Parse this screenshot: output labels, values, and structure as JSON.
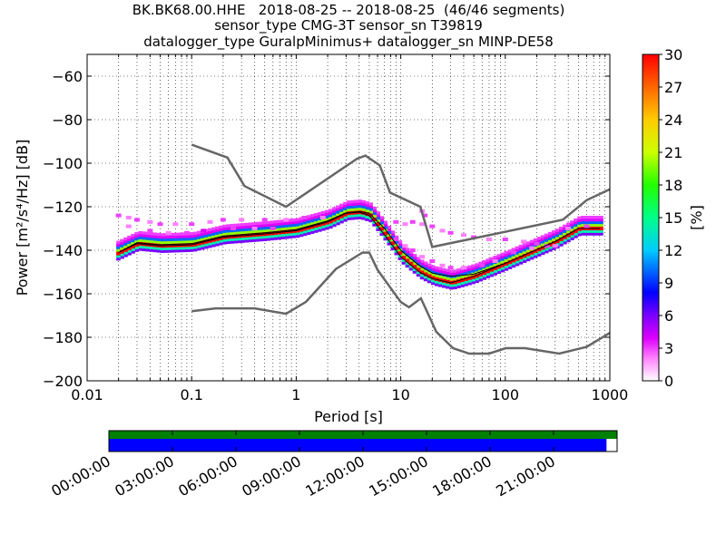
{
  "title_lines": [
    "BK.BK68.00.HHE   2018-08-25 -- 2018-08-25  (46/46 segments)",
    "sensor_type CMG-3T sensor_sn T39819",
    "datalogger_type GuralpMinimus+ datalogger_sn MINP-DE58"
  ],
  "chart_data": {
    "type": "heatmap",
    "xlabel": "Period [s]",
    "ylabel": "Power [m²/s⁴/Hz] [dB]",
    "xscale": "log",
    "xlim": [
      0.01,
      1000
    ],
    "ylim": [
      -200,
      -50
    ],
    "xticks": [
      {
        "value": 0.01,
        "label": "0.01"
      },
      {
        "value": 0.1,
        "label": "0.1"
      },
      {
        "value": 1,
        "label": "1"
      },
      {
        "value": 10,
        "label": "10"
      },
      {
        "value": 100,
        "label": "100"
      },
      {
        "value": 1000,
        "label": "1000"
      }
    ],
    "yticks": [
      {
        "value": -60,
        "label": "−60"
      },
      {
        "value": -80,
        "label": "−80"
      },
      {
        "value": -100,
        "label": "−100"
      },
      {
        "value": -120,
        "label": "−120"
      },
      {
        "value": -140,
        "label": "−140"
      },
      {
        "value": -160,
        "label": "−160"
      },
      {
        "value": -180,
        "label": "−180"
      },
      {
        "value": -200,
        "label": "−200"
      }
    ],
    "grid": true,
    "colorbar": {
      "label": "[%]",
      "range": [
        0,
        30
      ],
      "ticks": [
        {
          "value": 0,
          "label": "0"
        },
        {
          "value": 3,
          "label": "3"
        },
        {
          "value": 6,
          "label": "6"
        },
        {
          "value": 9,
          "label": "9"
        },
        {
          "value": 12,
          "label": "12"
        },
        {
          "value": 15,
          "label": "15"
        },
        {
          "value": 18,
          "label": "18"
        },
        {
          "value": 21,
          "label": "21"
        },
        {
          "value": 24,
          "label": "24"
        },
        {
          "value": 27,
          "label": "27"
        },
        {
          "value": 30,
          "label": "30"
        }
      ]
    },
    "reference_models": [
      {
        "id": "nhnm",
        "color": "#666666",
        "points": [
          [
            0.1,
            -91.5
          ],
          [
            0.22,
            -97.4
          ],
          [
            0.32,
            -110.5
          ],
          [
            0.8,
            -120
          ],
          [
            3.8,
            -98
          ],
          [
            4.6,
            -96.5
          ],
          [
            6.3,
            -101
          ],
          [
            7.9,
            -113.5
          ],
          [
            15.4,
            -120
          ],
          [
            20,
            -138.5
          ],
          [
            354.8,
            -126
          ],
          [
            600,
            -117
          ],
          [
            1000,
            -112
          ]
        ]
      },
      {
        "id": "nlnm",
        "color": "#666666",
        "points": [
          [
            0.1,
            -168
          ],
          [
            0.17,
            -166.7
          ],
          [
            0.4,
            -166.7
          ],
          [
            0.8,
            -169.2
          ],
          [
            1.24,
            -163.7
          ],
          [
            2.4,
            -148.6
          ],
          [
            4.3,
            -141.1
          ],
          [
            5,
            -141.1
          ],
          [
            6,
            -149
          ],
          [
            10,
            -163.8
          ],
          [
            12,
            -166.2
          ],
          [
            15.6,
            -162.1
          ],
          [
            21.9,
            -177.5
          ],
          [
            31.6,
            -185
          ],
          [
            45,
            -187.5
          ],
          [
            70,
            -187.5
          ],
          [
            101,
            -185
          ],
          [
            154,
            -185
          ],
          [
            328,
            -187.5
          ],
          [
            600,
            -184.4
          ],
          [
            1000,
            -178
          ]
        ]
      }
    ],
    "mode_curve": {
      "color": "#000000",
      "points": [
        [
          0.02,
          -141
        ],
        [
          0.03,
          -137
        ],
        [
          0.05,
          -138
        ],
        [
          0.1,
          -137.5
        ],
        [
          0.2,
          -134
        ],
        [
          0.5,
          -132.5
        ],
        [
          1,
          -131
        ],
        [
          2,
          -127
        ],
        [
          3,
          -123
        ],
        [
          4,
          -122.5
        ],
        [
          5,
          -124
        ],
        [
          7,
          -133
        ],
        [
          10,
          -143
        ],
        [
          15,
          -150
        ],
        [
          20,
          -153
        ],
        [
          30,
          -155
        ],
        [
          50,
          -152
        ],
        [
          100,
          -146
        ],
        [
          300,
          -136
        ],
        [
          500,
          -130
        ],
        [
          800,
          -130
        ]
      ]
    },
    "mean_curve": {
      "color": "#000000",
      "points": [
        [
          0.02,
          -141
        ],
        [
          0.03,
          -136.5
        ],
        [
          0.05,
          -137.5
        ],
        [
          0.1,
          -137
        ],
        [
          0.2,
          -133.5
        ],
        [
          0.5,
          -132
        ],
        [
          1,
          -130.5
        ],
        [
          2,
          -126.5
        ],
        [
          3,
          -122.8
        ],
        [
          4,
          -122.2
        ],
        [
          5,
          -123
        ],
        [
          7,
          -130
        ],
        [
          10,
          -140
        ],
        [
          15,
          -147
        ],
        [
          20,
          -150.5
        ],
        [
          30,
          -152
        ],
        [
          50,
          -151
        ],
        [
          100,
          -146
        ],
        [
          300,
          -136
        ],
        [
          500,
          -130
        ],
        [
          800,
          -130
        ]
      ]
    },
    "psd_bands": [
      {
        "percent": 30,
        "offset": 0
      },
      {
        "percent": 20,
        "offset": 1.2
      },
      {
        "percent": 14,
        "offset": -1.2
      },
      {
        "percent": 10,
        "offset": 2.4
      },
      {
        "percent": 6,
        "offset": -2.4
      },
      {
        "percent": 4,
        "offset": 3.6
      },
      {
        "percent": 3,
        "offset": 5
      }
    ],
    "scatter_cells": [
      {
        "x": 0.02,
        "y": -124,
        "p": 3
      },
      {
        "x": 0.025,
        "y": -125,
        "p": 2
      },
      {
        "x": 0.03,
        "y": -126,
        "p": 3
      },
      {
        "x": 0.04,
        "y": -127,
        "p": 2
      },
      {
        "x": 0.05,
        "y": -128,
        "p": 3
      },
      {
        "x": 0.07,
        "y": -128,
        "p": 2
      },
      {
        "x": 0.1,
        "y": -128,
        "p": 3
      },
      {
        "x": 0.15,
        "y": -127,
        "p": 2
      },
      {
        "x": 0.2,
        "y": -126,
        "p": 3
      },
      {
        "x": 0.3,
        "y": -126,
        "p": 2
      },
      {
        "x": 0.5,
        "y": -126,
        "p": 3
      },
      {
        "x": 0.8,
        "y": -126,
        "p": 2
      },
      {
        "x": 1.2,
        "y": -125,
        "p": 3
      },
      {
        "x": 1.8,
        "y": -125,
        "p": 2
      },
      {
        "x": 0.025,
        "y": -129,
        "p": 2
      },
      {
        "x": 0.04,
        "y": -131,
        "p": 3
      },
      {
        "x": 0.06,
        "y": -132,
        "p": 2
      },
      {
        "x": 0.09,
        "y": -132,
        "p": 3
      },
      {
        "x": 0.13,
        "y": -131,
        "p": 4
      },
      {
        "x": 0.25,
        "y": -130,
        "p": 3
      },
      {
        "x": 0.4,
        "y": -130,
        "p": 2
      },
      {
        "x": 0.6,
        "y": -130,
        "p": 3
      },
      {
        "x": 9,
        "y": -127,
        "p": 3
      },
      {
        "x": 11,
        "y": -128,
        "p": 2
      },
      {
        "x": 13,
        "y": -127,
        "p": 3
      },
      {
        "x": 16,
        "y": -128,
        "p": 2
      },
      {
        "x": 20,
        "y": -129,
        "p": 3
      },
      {
        "x": 25,
        "y": -131,
        "p": 2
      },
      {
        "x": 30,
        "y": -132,
        "p": 3
      },
      {
        "x": 40,
        "y": -133,
        "p": 2
      },
      {
        "x": 50,
        "y": -134,
        "p": 3
      },
      {
        "x": 70,
        "y": -135,
        "p": 2
      },
      {
        "x": 100,
        "y": -135,
        "p": 3
      },
      {
        "x": 150,
        "y": -136,
        "p": 2
      },
      {
        "x": 200,
        "y": -137,
        "p": 3
      },
      {
        "x": 300,
        "y": -138,
        "p": 2
      },
      {
        "x": 16,
        "y": -122,
        "p": 2
      },
      {
        "x": 17,
        "y": -124,
        "p": 3
      },
      {
        "x": 9,
        "y": -135,
        "p": 3
      },
      {
        "x": 11,
        "y": -138,
        "p": 2
      },
      {
        "x": 13,
        "y": -140,
        "p": 3
      },
      {
        "x": 16,
        "y": -143,
        "p": 2
      },
      {
        "x": 20,
        "y": -145,
        "p": 3
      },
      {
        "x": 25,
        "y": -147,
        "p": 2
      },
      {
        "x": 30,
        "y": -148,
        "p": 3
      },
      {
        "x": 40,
        "y": -148,
        "p": 2
      },
      {
        "x": 60,
        "y": -147,
        "p": 3
      },
      {
        "x": 80,
        "y": -145,
        "p": 2
      },
      {
        "x": 120,
        "y": -141,
        "p": 3
      },
      {
        "x": 180,
        "y": -139,
        "p": 2
      },
      {
        "x": 250,
        "y": -138,
        "p": 3
      },
      {
        "x": 400,
        "y": -130,
        "p": 2
      },
      {
        "x": 600,
        "y": -129,
        "p": 3
      }
    ],
    "timeline": {
      "range_hours": [
        0,
        24
      ],
      "data_coverage_end_hours": 23.5,
      "ticks": [
        {
          "hour": 0,
          "label": "00:00:00"
        },
        {
          "hour": 3,
          "label": "03:00:00"
        },
        {
          "hour": 6,
          "label": "06:00:00"
        },
        {
          "hour": 9,
          "label": "09:00:00"
        },
        {
          "hour": 12,
          "label": "12:00:00"
        },
        {
          "hour": 15,
          "label": "15:00:00"
        },
        {
          "hour": 18,
          "label": "18:00:00"
        },
        {
          "hour": 21,
          "label": "21:00:00"
        }
      ],
      "segment_color": "#008000",
      "coverage_color": "#0000ff"
    }
  }
}
